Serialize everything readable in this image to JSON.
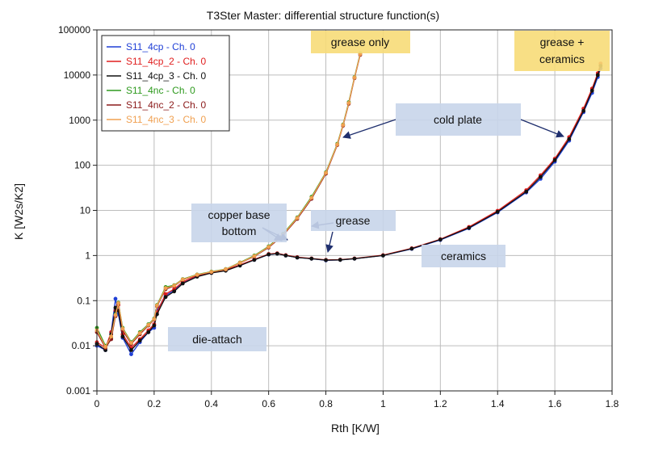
{
  "chart_data": {
    "type": "scatter",
    "title": "T3Ster Master: differential structure function(s)",
    "xlabel": "Rth  [K/W]",
    "ylabel": "K  [W2s/K2]",
    "xlim": [
      0,
      1.8
    ],
    "ylim": [
      0.001,
      100000
    ],
    "yscale": "log",
    "grid": true,
    "legend_position": "top-left",
    "x_ticks": [
      "0",
      "0.2",
      "0.4",
      "0.6",
      "0.8",
      "1",
      "1.2",
      "1.4",
      "1.6",
      "1.8"
    ],
    "y_ticks": [
      "0.001",
      "0.01",
      "0.1",
      "1",
      "10",
      "100",
      "1000",
      "10000",
      "100000"
    ],
    "series": [
      {
        "name": "S11_4cp - Ch. 0",
        "color": "#1f3fd6",
        "group": "cp",
        "x": [
          0,
          0.03,
          0.05,
          0.065,
          0.075,
          0.09,
          0.12,
          0.15,
          0.18,
          0.2,
          0.21,
          0.24,
          0.27,
          0.3,
          0.35,
          0.4,
          0.45,
          0.5,
          0.55,
          0.6,
          0.63,
          0.66,
          0.7,
          0.75,
          0.8,
          0.85,
          0.9,
          1.0,
          1.1,
          1.2,
          1.3,
          1.4,
          1.5,
          1.55,
          1.6,
          1.65,
          1.7,
          1.73,
          1.75,
          1.76
        ],
        "y": [
          0.01,
          0.008,
          0.02,
          0.11,
          0.05,
          0.015,
          0.0065,
          0.012,
          0.02,
          0.025,
          0.06,
          0.13,
          0.17,
          0.25,
          0.35,
          0.42,
          0.47,
          0.6,
          0.8,
          1.05,
          1.1,
          1.0,
          0.9,
          0.85,
          0.78,
          0.8,
          0.85,
          1.0,
          1.4,
          2.2,
          4.0,
          9.0,
          25,
          50,
          120,
          350,
          1500,
          4000,
          9000,
          14000
        ]
      },
      {
        "name": "S11_4cp_2 - Ch. 0",
        "color": "#e01e1e",
        "group": "cp",
        "x": [
          0,
          0.03,
          0.05,
          0.065,
          0.075,
          0.09,
          0.12,
          0.15,
          0.18,
          0.2,
          0.21,
          0.24,
          0.27,
          0.3,
          0.35,
          0.4,
          0.45,
          0.5,
          0.55,
          0.6,
          0.63,
          0.66,
          0.7,
          0.75,
          0.8,
          0.85,
          0.9,
          1.0,
          1.1,
          1.2,
          1.3,
          1.4,
          1.5,
          1.55,
          1.6,
          1.65,
          1.7,
          1.73,
          1.75,
          1.76
        ],
        "y": [
          0.012,
          0.009,
          0.02,
          0.06,
          0.08,
          0.018,
          0.009,
          0.014,
          0.022,
          0.03,
          0.055,
          0.14,
          0.18,
          0.26,
          0.36,
          0.43,
          0.48,
          0.62,
          0.82,
          1.08,
          1.12,
          1.02,
          0.92,
          0.86,
          0.8,
          0.81,
          0.86,
          1.02,
          1.45,
          2.3,
          4.3,
          9.8,
          28,
          60,
          140,
          420,
          1800,
          5000,
          11000,
          18000
        ]
      },
      {
        "name": "S11_4cp_3 - Ch. 0",
        "color": "#111111",
        "group": "cp",
        "x": [
          0,
          0.03,
          0.05,
          0.065,
          0.075,
          0.09,
          0.12,
          0.15,
          0.18,
          0.2,
          0.21,
          0.24,
          0.27,
          0.3,
          0.35,
          0.4,
          0.45,
          0.5,
          0.55,
          0.6,
          0.63,
          0.66,
          0.7,
          0.75,
          0.8,
          0.85,
          0.9,
          1.0,
          1.1,
          1.2,
          1.3,
          1.4,
          1.5,
          1.55,
          1.6,
          1.65,
          1.7,
          1.73,
          1.75,
          1.76
        ],
        "y": [
          0.011,
          0.008,
          0.018,
          0.07,
          0.06,
          0.016,
          0.008,
          0.013,
          0.02,
          0.028,
          0.05,
          0.12,
          0.16,
          0.24,
          0.34,
          0.41,
          0.46,
          0.6,
          0.8,
          1.06,
          1.1,
          1.0,
          0.9,
          0.85,
          0.79,
          0.8,
          0.85,
          1.0,
          1.42,
          2.25,
          4.1,
          9.3,
          26,
          55,
          130,
          380,
          1600,
          4500,
          10000,
          16000
        ]
      },
      {
        "name": "S11_4nc - Ch. 0",
        "color": "#2e9a1e",
        "group": "nc",
        "x": [
          0,
          0.03,
          0.05,
          0.065,
          0.075,
          0.09,
          0.12,
          0.15,
          0.18,
          0.2,
          0.21,
          0.24,
          0.27,
          0.3,
          0.35,
          0.4,
          0.45,
          0.5,
          0.55,
          0.6,
          0.65,
          0.7,
          0.75,
          0.8,
          0.84,
          0.86,
          0.88,
          0.9,
          0.92
        ],
        "y": [
          0.025,
          0.01,
          0.015,
          0.05,
          0.09,
          0.025,
          0.012,
          0.02,
          0.03,
          0.04,
          0.08,
          0.2,
          0.22,
          0.3,
          0.38,
          0.44,
          0.5,
          0.7,
          1.0,
          1.6,
          3.0,
          7.0,
          20,
          70,
          300,
          800,
          2500,
          9000,
          30000
        ]
      },
      {
        "name": "S11_4nc_2 - Ch. 0",
        "color": "#8b1a1a",
        "group": "nc",
        "x": [
          0,
          0.03,
          0.05,
          0.065,
          0.075,
          0.09,
          0.12,
          0.15,
          0.18,
          0.2,
          0.21,
          0.24,
          0.27,
          0.3,
          0.35,
          0.4,
          0.45,
          0.5,
          0.55,
          0.6,
          0.65,
          0.7,
          0.75,
          0.8,
          0.84,
          0.86,
          0.88,
          0.9,
          0.92
        ],
        "y": [
          0.02,
          0.009,
          0.014,
          0.045,
          0.085,
          0.022,
          0.011,
          0.018,
          0.028,
          0.038,
          0.075,
          0.18,
          0.21,
          0.29,
          0.37,
          0.43,
          0.49,
          0.68,
          0.95,
          1.5,
          2.8,
          6.5,
          18,
          65,
          280,
          750,
          2300,
          8500,
          28000
        ]
      },
      {
        "name": "S11_4nc_3 - Ch. 0",
        "color": "#f0a050",
        "group": "nc",
        "x": [
          0,
          0.03,
          0.05,
          0.065,
          0.075,
          0.09,
          0.12,
          0.15,
          0.18,
          0.2,
          0.21,
          0.24,
          0.27,
          0.3,
          0.35,
          0.4,
          0.45,
          0.5,
          0.55,
          0.6,
          0.65,
          0.7,
          0.75,
          0.8,
          0.84,
          0.86,
          0.88,
          0.9,
          0.92
        ],
        "y": [
          0.022,
          0.0095,
          0.016,
          0.048,
          0.088,
          0.024,
          0.0115,
          0.019,
          0.029,
          0.039,
          0.078,
          0.19,
          0.215,
          0.295,
          0.375,
          0.435,
          0.495,
          0.69,
          0.97,
          1.55,
          2.9,
          6.8,
          19,
          68,
          290,
          780,
          2400,
          8800,
          29000
        ]
      }
    ],
    "annotations": [
      {
        "text": "grease only",
        "style": "yellow"
      },
      {
        "text": [
          "grease +",
          "ceramics"
        ],
        "style": "yellow"
      },
      {
        "text": "cold plate",
        "style": "blue"
      },
      {
        "text": [
          "copper base",
          "bottom"
        ],
        "style": "blue"
      },
      {
        "text": "grease",
        "style": "blue"
      },
      {
        "text": "ceramics",
        "style": "blue"
      },
      {
        "text": "die-attach",
        "style": "blue"
      }
    ]
  }
}
